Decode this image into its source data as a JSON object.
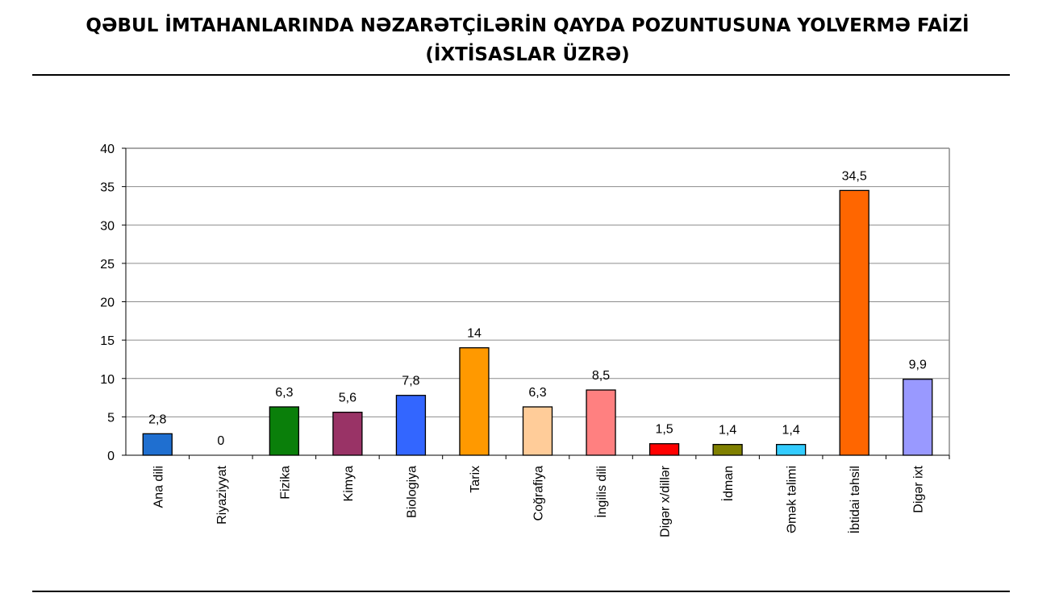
{
  "header": {
    "title_line1": "QƏBUL İMTAHANLARINDA NƏZARƏTÇİLƏRİN  QAYDA POZUNTUSUNA YOLVERMƏ FAİZİ",
    "title_line2": "(İXTİSASLAR ÜZRƏ)"
  },
  "chart_data": {
    "type": "bar",
    "title": "QƏBUL İMTAHANLARINDA NƏZARƏTÇİLƏRİN  QAYDA POZUNTUSUNA YOLVERMƏ FAİZİ (İXTİSASLAR ÜZRƏ)",
    "xlabel": "",
    "ylabel": "",
    "ylim": [
      0,
      40
    ],
    "yticks": [
      0,
      5,
      10,
      15,
      20,
      25,
      30,
      35,
      40
    ],
    "grid": true,
    "legend": "none",
    "categories": [
      "Ana dili",
      "Riyaziyyat",
      "Fizika",
      "Kimya",
      "Biologiya",
      "Tarix",
      "Coğrafiya",
      "İngilis dili",
      "Digər x/dillər",
      "İdman",
      "Əmək təlimi",
      "İbtidai təhsil",
      "Digər ixt"
    ],
    "values": [
      2.8,
      0,
      6.3,
      5.6,
      7.8,
      14,
      6.3,
      8.5,
      1.5,
      1.4,
      1.4,
      34.5,
      9.9
    ],
    "value_labels": [
      "2,8",
      "0",
      "6,3",
      "5,6",
      "7,8",
      "14",
      "6,3",
      "8,5",
      "1,5",
      "1,4",
      "1,4",
      "34,5",
      "9,9"
    ],
    "colors": [
      "#1F6FD0",
      "#1F6FD0",
      "#0A7F0A",
      "#993366",
      "#3366FF",
      "#FF9900",
      "#FFCC99",
      "#FF8080",
      "#FF0000",
      "#808000",
      "#33CCFF",
      "#FF6600",
      "#9999FF"
    ]
  }
}
